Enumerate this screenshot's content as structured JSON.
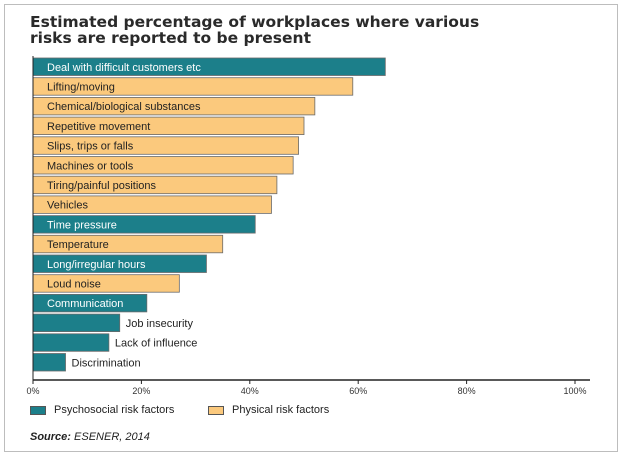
{
  "title": "Estimated percentage of workplaces where various risks are reported to be present",
  "source": {
    "label": "Source:",
    "text": "ESENER, 2014"
  },
  "legend": [
    {
      "key": "psychosocial",
      "label": "Psychosocial risk factors",
      "color": "#1c7f8a"
    },
    {
      "key": "physical",
      "label": "Physical risk factors",
      "color": "#fbc97d"
    }
  ],
  "chart_data": {
    "type": "bar",
    "orientation": "horizontal",
    "categories": [
      "Deal with difficult customers etc",
      "Lifting/moving",
      "Chemical/biological substances",
      "Repetitive movement",
      "Slips, trips or falls",
      "Machines or tools",
      "Tiring/painful positions",
      "Vehicles",
      "Time pressure",
      "Temperature",
      "Long/irregular hours",
      "Loud noise",
      "Communication",
      "Job insecurity",
      "Lack of influence",
      "Discrimination"
    ],
    "values": [
      65,
      59,
      52,
      50,
      49,
      48,
      45,
      44,
      41,
      35,
      32,
      27,
      21,
      16,
      14,
      6
    ],
    "groups": [
      "psychosocial",
      "physical",
      "physical",
      "physical",
      "physical",
      "physical",
      "physical",
      "physical",
      "psychosocial",
      "physical",
      "psychosocial",
      "physical",
      "psychosocial",
      "psychosocial",
      "psychosocial",
      "psychosocial"
    ],
    "xlim": [
      0,
      100
    ],
    "xticks": [
      "0%",
      "20%",
      "40%",
      "60%",
      "80%",
      "100%"
    ],
    "grid": false,
    "legend_position": "bottom"
  }
}
